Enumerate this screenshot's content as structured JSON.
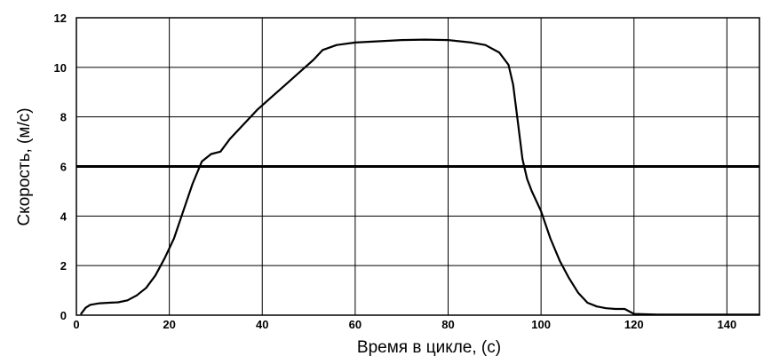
{
  "chart_data": {
    "type": "line",
    "title": "",
    "xlabel": "Время в цикле, (с)",
    "ylabel": "Скорость, (м/с)",
    "xlim": [
      0,
      147
    ],
    "ylim": [
      0,
      12
    ],
    "xticks": [
      0,
      20,
      40,
      60,
      80,
      100,
      120,
      140
    ],
    "yticks": [
      0,
      2,
      4,
      6,
      8,
      10,
      12
    ],
    "grid": true,
    "reference_line": {
      "y": 6
    },
    "series": [
      {
        "color": "#000000",
        "points": [
          [
            1,
            0.05
          ],
          [
            2,
            0.3
          ],
          [
            3,
            0.42
          ],
          [
            5,
            0.48
          ],
          [
            7,
            0.5
          ],
          [
            9,
            0.52
          ],
          [
            11,
            0.6
          ],
          [
            13,
            0.8
          ],
          [
            15,
            1.1
          ],
          [
            17,
            1.6
          ],
          [
            19,
            2.3
          ],
          [
            21,
            3.1
          ],
          [
            23,
            4.2
          ],
          [
            25,
            5.3
          ],
          [
            27,
            6.2
          ],
          [
            29,
            6.5
          ],
          [
            31,
            6.6
          ],
          [
            33,
            7.1
          ],
          [
            36,
            7.7
          ],
          [
            39,
            8.3
          ],
          [
            42,
            8.8
          ],
          [
            45,
            9.3
          ],
          [
            48,
            9.8
          ],
          [
            51,
            10.3
          ],
          [
            53,
            10.7
          ],
          [
            56,
            10.9
          ],
          [
            60,
            11.0
          ],
          [
            65,
            11.05
          ],
          [
            70,
            11.1
          ],
          [
            75,
            11.12
          ],
          [
            80,
            11.1
          ],
          [
            85,
            11.0
          ],
          [
            88,
            10.9
          ],
          [
            91,
            10.6
          ],
          [
            93,
            10.1
          ],
          [
            94,
            9.3
          ],
          [
            95,
            7.8
          ],
          [
            96,
            6.3
          ],
          [
            97,
            5.5
          ],
          [
            98,
            5.0
          ],
          [
            100,
            4.2
          ],
          [
            102,
            3.1
          ],
          [
            104,
            2.2
          ],
          [
            106,
            1.5
          ],
          [
            108,
            0.9
          ],
          [
            110,
            0.5
          ],
          [
            112,
            0.35
          ],
          [
            114,
            0.28
          ],
          [
            116,
            0.25
          ],
          [
            118,
            0.25
          ],
          [
            120,
            0.05
          ],
          [
            125,
            0.02
          ],
          [
            130,
            0.02
          ],
          [
            140,
            0.02
          ],
          [
            147,
            0.02
          ]
        ]
      }
    ]
  }
}
